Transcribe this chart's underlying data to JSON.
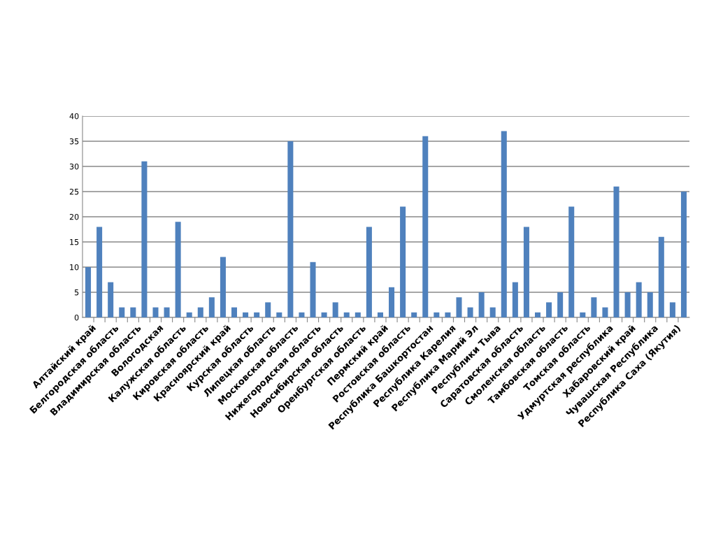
{
  "chart_data": {
    "type": "bar",
    "categories": [
      "Алтайский край",
      null,
      "Белгородская область",
      null,
      "Владимирская область",
      null,
      "Вологодская",
      null,
      "Калужская область",
      null,
      "Кировская область",
      null,
      "Красноярский край",
      null,
      "Курская область",
      null,
      "Липецкая область",
      null,
      "Московская область",
      null,
      "Нижегородская область",
      null,
      "Новосибирская область",
      null,
      "Оренбургская область",
      null,
      "Пермский край",
      null,
      "Ростовская область",
      null,
      "Республика Башкортостан",
      null,
      "Республика Карелия",
      null,
      "Республика Марий Эл",
      null,
      "Республики Тыва",
      null,
      "Саратовская область",
      null,
      "Смоленская область",
      null,
      "Тамбовская область",
      null,
      "Томская область",
      null,
      "Удмуртская республика",
      null,
      "Хабаровский край",
      null,
      "Чувашская Республика",
      null,
      "Республика Саха (Якутия)",
      null
    ],
    "values": [
      10,
      18,
      7,
      2,
      2,
      31,
      2,
      2,
      19,
      1,
      2,
      4,
      12,
      2,
      1,
      1,
      3,
      1,
      35,
      1,
      11,
      1,
      3,
      1,
      1,
      18,
      1,
      6,
      22,
      1,
      36,
      1,
      1,
      4,
      2,
      5,
      2,
      37,
      7,
      18,
      1,
      3,
      5,
      22,
      1,
      4,
      2,
      26,
      5,
      7,
      5,
      16,
      3,
      25
    ],
    "color": "#4f81bd",
    "ylim": [
      0,
      40
    ],
    "yticks": [
      0,
      5,
      10,
      15,
      20,
      25,
      30,
      35,
      40
    ],
    "grid": "y",
    "legend": false
  }
}
